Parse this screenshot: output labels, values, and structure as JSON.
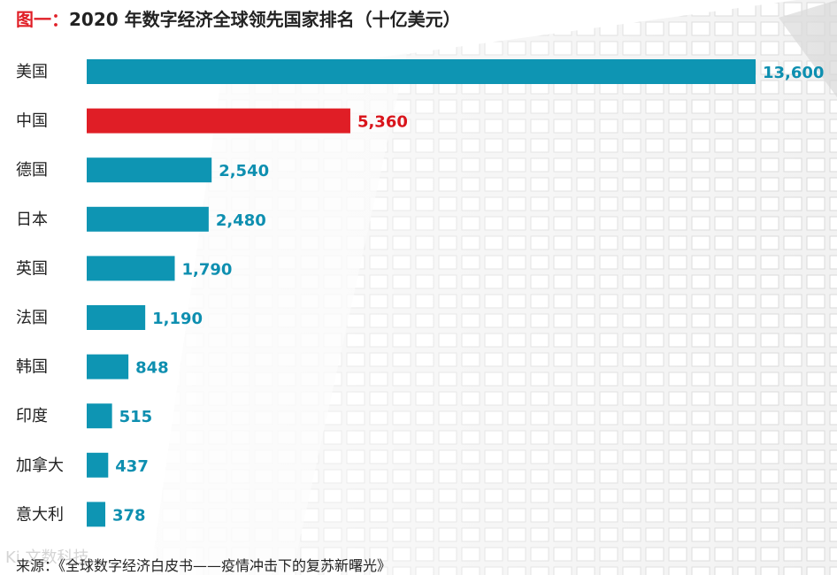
{
  "title": {
    "prefix": "图一：",
    "text": "2020 年数字经济全球领先国家排名（十亿美元）"
  },
  "source_text": "来源：《全球数字经济白皮书——疫情冲击下的复苏新曙光》",
  "watermark_text": "Ki 文数科技",
  "colors": {
    "bar": "#0e95b3",
    "highlight": "#e01e26",
    "highlight_label": "#d9151c",
    "value_text": "#0e8fb0",
    "category_text": "#222222",
    "title_accent": "#e01e26"
  },
  "chart_data": {
    "type": "bar",
    "orientation": "horizontal",
    "title": "2020 年数字经济全球领先国家排名（十亿美元）",
    "categories": [
      "美国",
      "中国",
      "德国",
      "日本",
      "英国",
      "法国",
      "韩国",
      "印度",
      "加拿大",
      "意大利"
    ],
    "values": [
      13600,
      5360,
      2540,
      2480,
      1790,
      1190,
      848,
      515,
      437,
      378
    ],
    "value_labels": [
      "13,600",
      "5,360",
      "2,540",
      "2,480",
      "1,790",
      "1,190",
      "848",
      "515",
      "437",
      "378"
    ],
    "highlight_category": "中国",
    "xlim": [
      0,
      13600
    ],
    "grid": false,
    "legend": "none"
  }
}
